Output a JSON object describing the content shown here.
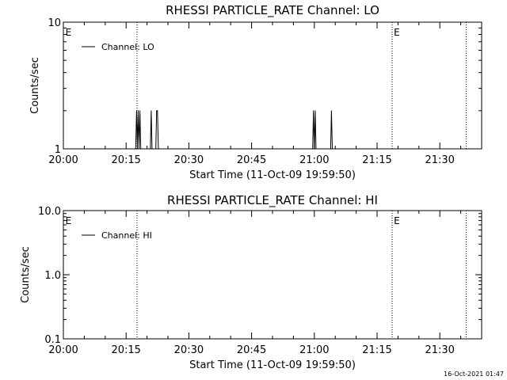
{
  "chart_data": [
    {
      "type": "line",
      "title": "RHESSI PARTICLE_RATE Channel: LO",
      "xlabel": "Start Time (11-Oct-09 19:59:50)",
      "ylabel": "Counts/sec",
      "x_ticks": [
        "20:00",
        "20:15",
        "20:30",
        "20:45",
        "21:00",
        "21:15",
        "21:30"
      ],
      "x_tick_minutes": [
        0,
        15,
        30,
        45,
        60,
        75,
        90
      ],
      "x_range_minutes": [
        0,
        100
      ],
      "y_scale": "log",
      "ylim": [
        1,
        10
      ],
      "y_ticks": [
        {
          "value": 1,
          "label": "1"
        },
        {
          "value": 10,
          "label": "10"
        }
      ],
      "legend": "Channel: LO",
      "legend_position": "top-left",
      "eclipse_marker": "E",
      "vertical_markers_minutes": [
        17.6,
        78.6,
        96.3
      ],
      "eclipse_markers_minutes": [
        0.5,
        79.0
      ],
      "series": [
        {
          "name": "Channel: LO",
          "points": [
            [
              17.3,
              1
            ],
            [
              17.5,
              2
            ],
            [
              17.7,
              1
            ],
            [
              17.9,
              2
            ],
            [
              18.1,
              1
            ],
            [
              18.3,
              2
            ],
            [
              18.5,
              1
            ],
            [
              20.8,
              1
            ],
            [
              21.0,
              2
            ],
            [
              21.2,
              1
            ],
            [
              22.1,
              1
            ],
            [
              22.3,
              2
            ],
            [
              22.5,
              2
            ],
            [
              22.7,
              1
            ],
            [
              59.6,
              1
            ],
            [
              59.8,
              2
            ],
            [
              60.0,
              1
            ],
            [
              60.2,
              2
            ],
            [
              60.4,
              1
            ],
            [
              63.9,
              1
            ],
            [
              64.1,
              2
            ],
            [
              64.3,
              1
            ]
          ]
        }
      ]
    },
    {
      "type": "line",
      "title": "RHESSI PARTICLE_RATE Channel: HI",
      "xlabel": "Start Time (11-Oct-09 19:59:50)",
      "ylabel": "Counts/sec",
      "x_ticks": [
        "20:00",
        "20:15",
        "20:30",
        "20:45",
        "21:00",
        "21:15",
        "21:30"
      ],
      "x_tick_minutes": [
        0,
        15,
        30,
        45,
        60,
        75,
        90
      ],
      "x_range_minutes": [
        0,
        100
      ],
      "y_scale": "log",
      "ylim": [
        0.1,
        10
      ],
      "y_ticks": [
        {
          "value": 0.1,
          "label": "0.1"
        },
        {
          "value": 1,
          "label": "1.0"
        },
        {
          "value": 10,
          "label": "10.0"
        }
      ],
      "legend": "Channel: HI",
      "legend_position": "top-left",
      "eclipse_marker": "E",
      "vertical_markers_minutes": [
        17.6,
        78.6,
        96.3
      ],
      "eclipse_markers_minutes": [
        0.5,
        79.0
      ],
      "series": [
        {
          "name": "Channel: HI",
          "points": []
        }
      ]
    }
  ],
  "footer": {
    "timestamp": "16-Oct-2021 01:47"
  }
}
